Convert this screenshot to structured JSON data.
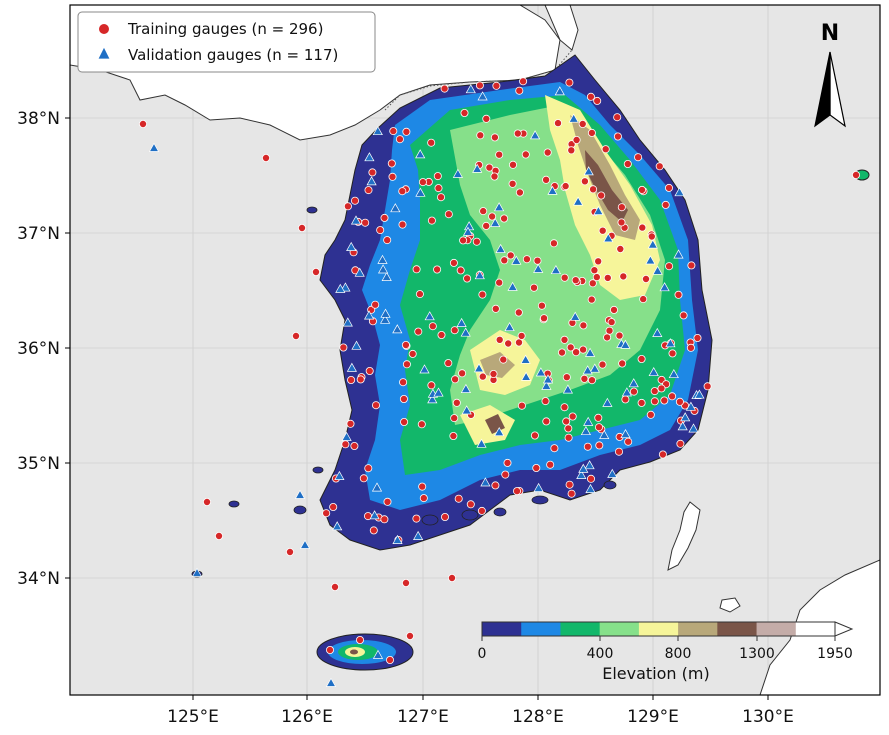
{
  "legend": {
    "training_label": "Training gauges (n = 296)",
    "validation_label": "Validation gauges (n = 117)",
    "training_color": "#d62728",
    "validation_color": "#1f6fc5"
  },
  "north_arrow": {
    "label": "N"
  },
  "axes": {
    "x_ticks": [
      "125°E",
      "126°E",
      "127°E",
      "128°E",
      "129°E",
      "130°E"
    ],
    "y_ticks": [
      "38°N",
      "37°N",
      "36°N",
      "35°N",
      "34°N"
    ]
  },
  "colorbar": {
    "title": "Elevation (m)",
    "tick_labels": [
      "0",
      "400",
      "800",
      "1300",
      "1950"
    ],
    "colors": [
      "#2e3192",
      "#1e88e5",
      "#12b76a",
      "#86e08a",
      "#f6f59a",
      "#b8a87a",
      "#7a5548",
      "#c4aca8",
      "#ffffff"
    ]
  },
  "colors": {
    "sea": "#e6e6e6",
    "north_land": "#ffffff"
  }
}
